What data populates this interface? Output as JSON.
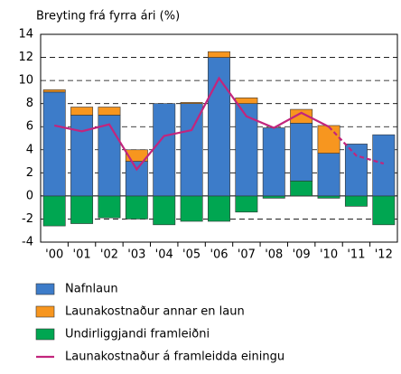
{
  "chart_data": {
    "type": "stacked_bar_line",
    "y_label": "Breyting frá fyrra ári (%)",
    "categories": [
      "'00",
      "'01",
      "'02",
      "'03",
      "'04",
      "'05",
      "'06",
      "'07",
      "'08",
      "'09",
      "'10",
      "'11",
      "'12"
    ],
    "series": [
      {
        "name": "Nafnlaun",
        "color": "#3d7cc9",
        "values": [
          9.0,
          7.0,
          7.0,
          3.0,
          8.0,
          8.0,
          12.0,
          8.0,
          5.9,
          5.0,
          3.7,
          4.5,
          5.3
        ]
      },
      {
        "name": "Launakostnaður annar en laun",
        "color": "#f7961f",
        "values": [
          0.2,
          0.7,
          0.7,
          1.0,
          0,
          0.1,
          0.5,
          0.5,
          0,
          1.2,
          2.4,
          0,
          0
        ]
      },
      {
        "name": "Undirliggjandi framleiðni",
        "color": "#00a651",
        "values": [
          -2.6,
          -2.4,
          -1.9,
          -2.0,
          -2.5,
          -2.2,
          -2.2,
          -1.4,
          -0.2,
          1.3,
          -0.2,
          -0.9,
          -2.5
        ]
      },
      {
        "name": "Launakostnaður á framleidda einingu",
        "color": "#c2257d",
        "type": "line",
        "dashed_from": 10,
        "values": [
          6.1,
          5.6,
          6.2,
          2.3,
          5.2,
          5.7,
          10.2,
          6.9,
          5.9,
          7.2,
          6.0,
          3.5,
          2.8
        ]
      }
    ],
    "ylim": [
      -4,
      14
    ],
    "yticks": [
      -4,
      -2,
      0,
      2,
      4,
      6,
      8,
      10,
      12,
      14
    ],
    "grid": true
  }
}
